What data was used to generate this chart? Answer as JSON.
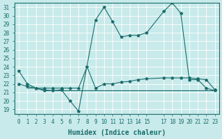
{
  "xlabel": "Humidex (Indice chaleur)",
  "bg_color": "#c8eaea",
  "grid_color": "#ffffff",
  "line_color": "#1a6b6b",
  "xlim": [
    -0.5,
    23.5
  ],
  "ylim": [
    18.5,
    31.5
  ],
  "yticks": [
    19,
    20,
    21,
    22,
    23,
    24,
    25,
    26,
    27,
    28,
    29,
    30,
    31
  ],
  "xtick_pos": [
    0,
    1,
    2,
    3,
    4,
    5,
    6,
    7,
    8,
    9,
    10,
    11,
    12,
    13,
    14,
    15,
    17,
    18,
    19,
    20,
    21,
    22,
    23
  ],
  "xtick_labels": [
    "0",
    "1",
    "2",
    "3",
    "4",
    "5",
    "6",
    "7",
    "8",
    "9",
    "10",
    "11",
    "12",
    "13",
    "14",
    "15",
    "17",
    "18",
    "19",
    "20",
    "21",
    "22",
    "23"
  ],
  "line1_x": [
    0,
    1,
    2,
    3,
    4,
    5,
    6,
    7,
    9,
    10,
    11,
    12,
    13,
    14,
    15,
    17,
    18,
    19,
    20,
    21,
    22,
    23
  ],
  "line1_y": [
    23.5,
    22.0,
    21.5,
    21.2,
    21.2,
    21.3,
    20.0,
    18.8,
    29.5,
    31.0,
    29.3,
    27.5,
    27.7,
    27.7,
    28.0,
    30.5,
    31.5,
    30.3,
    22.5,
    22.5,
    21.5,
    21.2
  ],
  "line2_x": [
    0,
    1,
    2,
    3,
    4,
    5,
    6,
    7,
    8,
    9,
    10,
    11,
    12,
    13,
    14,
    15,
    17,
    18,
    19,
    20,
    21,
    22,
    23
  ],
  "line2_y": [
    22.0,
    21.7,
    21.5,
    21.5,
    21.5,
    21.5,
    21.5,
    21.5,
    24.0,
    21.5,
    22.0,
    22.0,
    22.2,
    22.3,
    22.5,
    22.6,
    22.7,
    22.7,
    22.7,
    22.7,
    22.6,
    22.5,
    21.3
  ],
  "line3_x": [
    1,
    2,
    3,
    4,
    5,
    6,
    7,
    8,
    9,
    10,
    11,
    12,
    13,
    14,
    15,
    17,
    18,
    19,
    20,
    21,
    22,
    23
  ],
  "line3_y": [
    21.5,
    21.5,
    21.3,
    21.2,
    21.2,
    21.2,
    21.2,
    21.2,
    21.2,
    21.2,
    21.2,
    21.2,
    21.2,
    21.2,
    21.2,
    21.2,
    21.2,
    21.2,
    21.2,
    21.2,
    21.2,
    21.2
  ],
  "line1_marker": "*",
  "line2_marker": "*",
  "markersize": 3,
  "linewidth": 0.8,
  "tick_fontsize": 5.5,
  "label_fontsize": 7
}
